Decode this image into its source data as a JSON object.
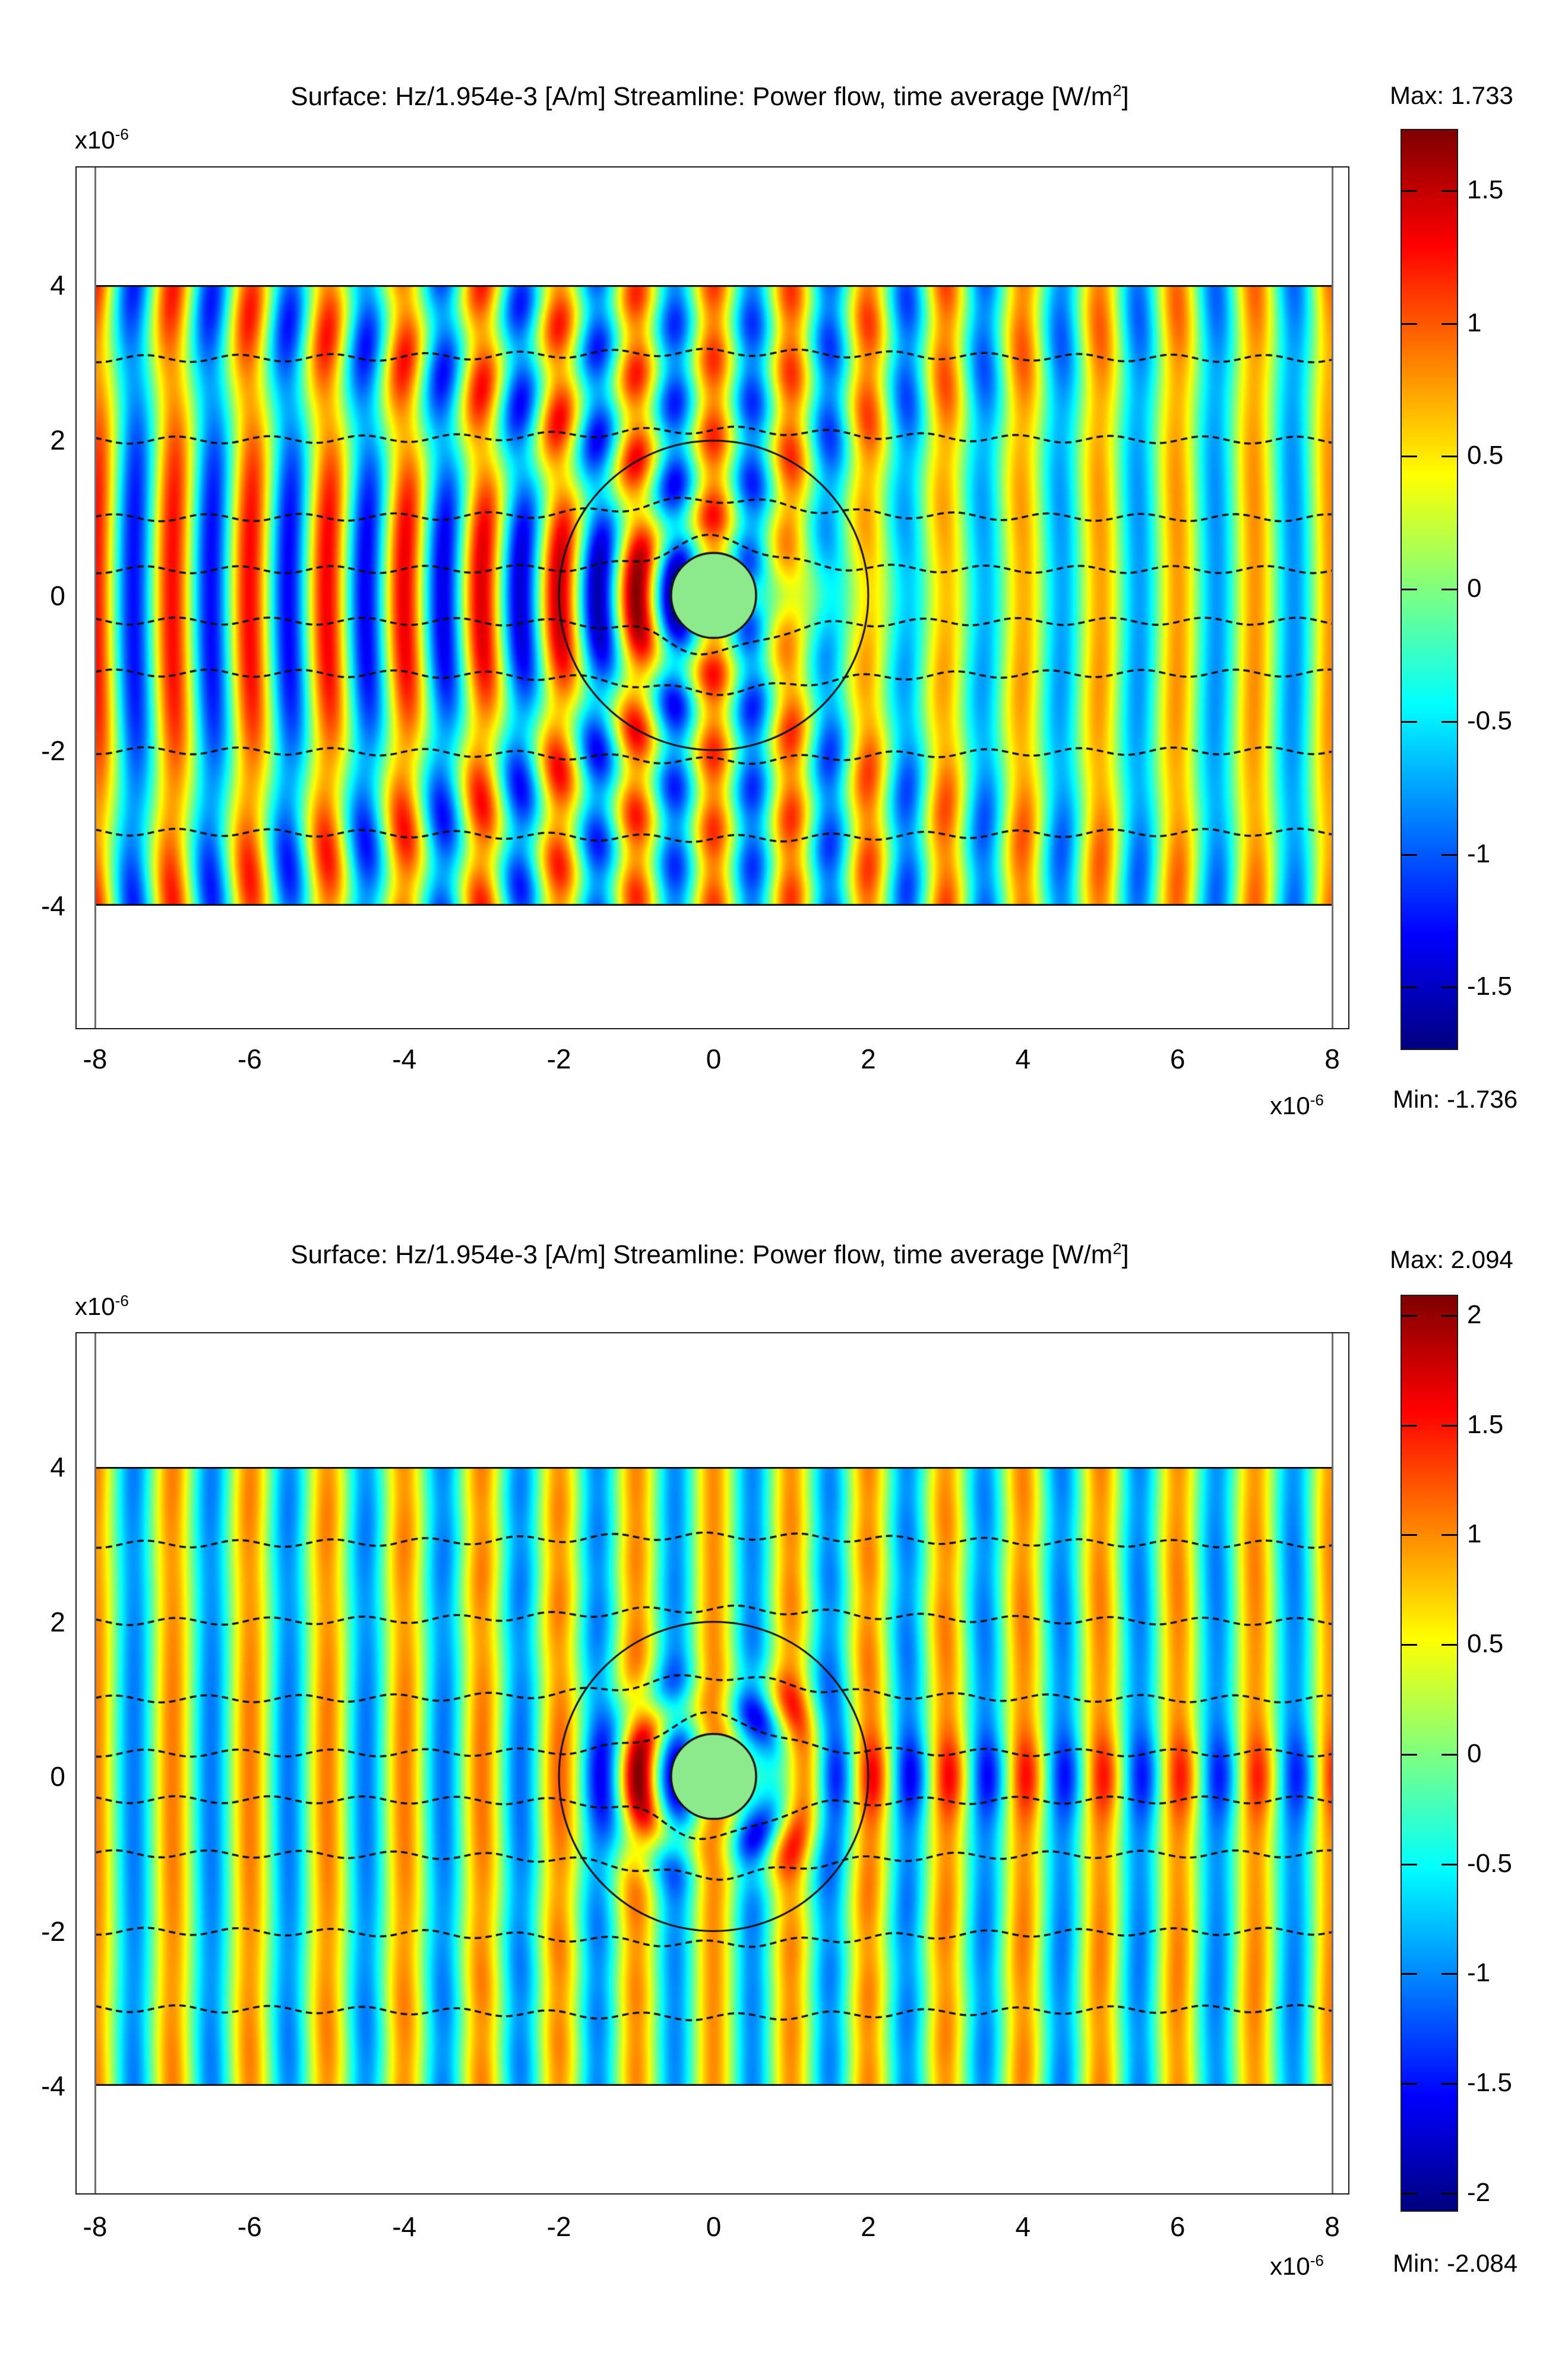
{
  "figure": {
    "background": "#ffffff",
    "plot_count": 2,
    "description_units": "axes in meters, scaled by 1e-6"
  },
  "chart_data": [
    {
      "type": "heatmap",
      "title": "Surface: Hz/1.954e-3 [A/m]   Streamline: Power flow, time average [W/m²]",
      "title_parts": {
        "main": "Surface: Hz/1.954e-3 [A/m]    Streamline: Power flow, time average [W/m",
        "sup": "2",
        "close": "]"
      },
      "axis_exp": {
        "base": "x10",
        "sup": "-6"
      },
      "xlim": [
        -8,
        8
      ],
      "ylim": [
        -4,
        4
      ],
      "x_ticks": [
        -8,
        -6,
        -4,
        -2,
        0,
        2,
        4,
        6,
        8
      ],
      "x_tick_labels": [
        "-8",
        "-6",
        "-4",
        "-2",
        "0",
        "2",
        "4",
        "6",
        "8"
      ],
      "y_ticks": [
        4,
        2,
        0,
        -2,
        -4
      ],
      "y_tick_labels": [
        "4",
        "2",
        "0",
        "-2",
        "-4"
      ],
      "surface": {
        "label": "Hz/1.954e-3 [A/m]",
        "vmax": 1.733,
        "vmin": -1.736,
        "wavelength": 1
      },
      "streamline": {
        "label": "Power flow, time average [W/m²]",
        "seed_y": [
          -3.05,
          -2.0,
          -1.0,
          -0.33,
          0.33,
          1.0,
          2.0,
          3.05
        ],
        "flow_radius": 0.55,
        "color": "#101010"
      },
      "geometry": {
        "cylinder_radius": 0.55,
        "cylinder_fill": "#8ce98c",
        "cylinder_stroke": "#141414",
        "outer_circle_radius": 2.0,
        "boundary_line_color": "#101010",
        "domain_edge_color": "#6f6f6f"
      },
      "colorbar": {
        "max_label": "Max: 1.733",
        "min_label": "Min: -1.736",
        "tick_values": [
          1.5,
          1,
          0.5,
          0,
          -0.5,
          -1,
          -1.5
        ],
        "tick_labels": [
          "1.5",
          "1",
          "0.5",
          "0",
          "-0.5",
          "-1",
          "-1.5"
        ],
        "gradient": [
          {
            "color": "#7f0000",
            "pos": 0
          },
          {
            "color": "#ff0000",
            "pos": 12.5
          },
          {
            "color": "#ffff00",
            "pos": 37.5
          },
          {
            "color": "#00ffff",
            "pos": 62.5
          },
          {
            "color": "#0000ff",
            "pos": 87.5
          },
          {
            "color": "#00007f",
            "pos": 100
          }
        ]
      },
      "render": {
        "kind": "shadow"
      },
      "field_character": "plane wave incident from left; strong backscatter standing-wave checkerboard left of cylinder, low-amplitude shadow behind cylinder that gradually recovers"
    },
    {
      "type": "heatmap",
      "title": "Surface: Hz/1.954e-3 [A/m]   Streamline: Power flow, time average [W/m²]",
      "title_parts": {
        "main": "Surface: Hz/1.954e-3 [A/m]    Streamline: Power flow, time average [W/m",
        "sup": "2",
        "close": "]"
      },
      "axis_exp": {
        "base": "x10",
        "sup": "-6"
      },
      "xlim": [
        -8,
        8
      ],
      "ylim": [
        -4,
        4
      ],
      "x_ticks": [
        -8,
        -6,
        -4,
        -2,
        0,
        2,
        4,
        6,
        8
      ],
      "x_tick_labels": [
        "-8",
        "-6",
        "-4",
        "-2",
        "0",
        "2",
        "4",
        "6",
        "8"
      ],
      "y_ticks": [
        4,
        2,
        0,
        -2,
        -4
      ],
      "y_tick_labels": [
        "4",
        "2",
        "0",
        "-2",
        "-4"
      ],
      "surface": {
        "label": "Hz/1.954e-3 [A/m]",
        "vmax": 2.094,
        "vmin": -2.084,
        "wavelength": 1
      },
      "streamline": {
        "label": "Power flow, time average [W/m²]",
        "seed_y": [
          -3.0,
          -2.0,
          -1.0,
          -0.3,
          0.3,
          1.0,
          2.0,
          3.0
        ],
        "flow_radius": 0.62,
        "color": "#101010"
      },
      "geometry": {
        "cylinder_radius": 0.55,
        "cylinder_fill": "#8ce98c",
        "cylinder_stroke": "#141414",
        "outer_circle_radius": 2.0,
        "boundary_line_color": "#101010",
        "domain_edge_color": "#6f6f6f"
      },
      "colorbar": {
        "max_label": "Max: 2.094",
        "min_label": "Min: -2.084",
        "tick_values": [
          2,
          1.5,
          1,
          0.5,
          0,
          -0.5,
          -1,
          -1.5,
          -2
        ],
        "tick_labels": [
          "2",
          "1.5",
          "1",
          "0.5",
          "0",
          "-0.5",
          "-1",
          "-1.5",
          "-2"
        ],
        "gradient": [
          {
            "color": "#7f0000",
            "pos": 0
          },
          {
            "color": "#ff0000",
            "pos": 12.5
          },
          {
            "color": "#ffff00",
            "pos": 37.5
          },
          {
            "color": "#00ffff",
            "pos": 62.5
          },
          {
            "color": "#0000ff",
            "pos": 87.5
          },
          {
            "color": "#00007f",
            "pos": 100
          }
        ]
      },
      "render": {
        "kind": "wake"
      },
      "field_character": "milder scattering: near-field arcs around cylinder, enhanced oscillating wake band along the axis behind cylinder, mild stripes elsewhere"
    }
  ]
}
